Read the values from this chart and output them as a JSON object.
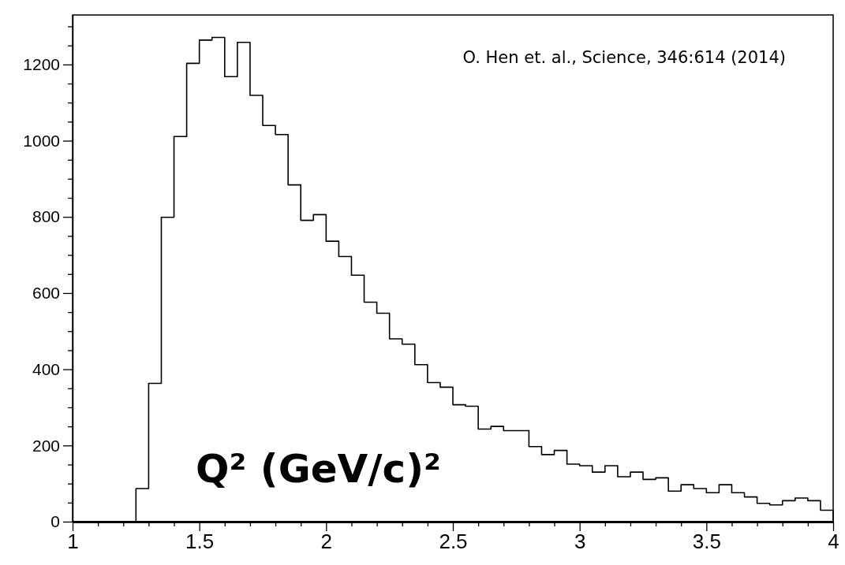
{
  "chart_data": {
    "type": "histogram",
    "xlabel": "Q² (GeV/c)²",
    "annotations": [
      "O. Hen et. al., Science, 346:614 (2014)"
    ],
    "bins": [
      1.0,
      1.05,
      1.1,
      1.15,
      1.2,
      1.25,
      1.3,
      1.35,
      1.4,
      1.45,
      1.5,
      1.55,
      1.6,
      1.65,
      1.7,
      1.75,
      1.8,
      1.85,
      1.9,
      1.95,
      2.0,
      2.05,
      2.1,
      2.15,
      2.2,
      2.25,
      2.3,
      2.35,
      2.4,
      2.45,
      2.5,
      2.55,
      2.6,
      2.65,
      2.7,
      2.75,
      2.8,
      2.85,
      2.9,
      2.95,
      3.0,
      3.05,
      3.1,
      3.15,
      3.2,
      3.25,
      3.3,
      3.35,
      3.4,
      3.45,
      3.5,
      3.55,
      3.6,
      3.65,
      3.7,
      3.75,
      3.8,
      3.85,
      3.9,
      3.95,
      4.0
    ],
    "values": [
      0,
      0,
      0,
      0,
      0,
      87,
      363,
      799,
      1011,
      1203,
      1264,
      1271,
      1168,
      1258,
      1119,
      1040,
      1016,
      884,
      791,
      806,
      736,
      696,
      647,
      576,
      547,
      480,
      466,
      412,
      365,
      353,
      307,
      303,
      243,
      250,
      239,
      239,
      197,
      176,
      187,
      151,
      147,
      130,
      147,
      118,
      130,
      111,
      115,
      80,
      97,
      87,
      76,
      97,
      76,
      65,
      48,
      44,
      55,
      62,
      55,
      30
    ],
    "color": "#000000",
    "xlim": [
      1,
      4
    ],
    "xticks": [
      1,
      {
        "value": 1.1,
        "label": null
      },
      {
        "value": 1.2,
        "label": null
      },
      {
        "value": 1.3,
        "label": null
      },
      {
        "value": 1.4,
        "label": null
      },
      1.5,
      {
        "value": 1.6,
        "label": null
      },
      {
        "value": 1.7,
        "label": null
      },
      {
        "value": 1.8,
        "label": null
      },
      {
        "value": 1.9,
        "label": null
      },
      2,
      {
        "value": 2.1,
        "label": null
      },
      {
        "value": 2.2,
        "label": null
      },
      {
        "value": 2.3,
        "label": null
      },
      {
        "value": 2.4,
        "label": null
      },
      2.5,
      {
        "value": 2.6,
        "label": null
      },
      {
        "value": 2.7,
        "label": null
      },
      {
        "value": 2.8,
        "label": null
      },
      {
        "value": 2.9,
        "label": null
      },
      3,
      {
        "value": 3.1,
        "label": null
      },
      {
        "value": 3.2,
        "label": null
      },
      {
        "value": 3.3,
        "label": null
      },
      {
        "value": 3.4,
        "label": null
      },
      3.5,
      {
        "value": 3.6,
        "label": null
      },
      {
        "value": 3.7,
        "label": null
      },
      {
        "value": 3.8,
        "label": null
      },
      {
        "value": 3.9,
        "label": null
      },
      4
    ],
    "ylim": [
      0,
      1330
    ],
    "yticks": [
      0,
      {
        "value": 50,
        "label": null
      },
      {
        "value": 100,
        "label": null
      },
      {
        "value": 150,
        "label": null
      },
      200,
      {
        "value": 250,
        "label": null
      },
      {
        "value": 300,
        "label": null
      },
      {
        "value": 350,
        "label": null
      },
      400,
      {
        "value": 450,
        "label": null
      },
      {
        "value": 500,
        "label": null
      },
      {
        "value": 550,
        "label": null
      },
      600,
      {
        "value": 650,
        "label": null
      },
      {
        "value": 700,
        "label": null
      },
      {
        "value": 750,
        "label": null
      },
      800,
      {
        "value": 850,
        "label": null
      },
      {
        "value": 900,
        "label": null
      },
      {
        "value": 950,
        "label": null
      },
      1000,
      {
        "value": 1050,
        "label": null
      },
      {
        "value": 1100,
        "label": null
      },
      {
        "value": 1150,
        "label": null
      },
      1200,
      {
        "value": 1250,
        "label": null
      },
      {
        "value": 1300,
        "label": null
      }
    ],
    "grid": false
  }
}
